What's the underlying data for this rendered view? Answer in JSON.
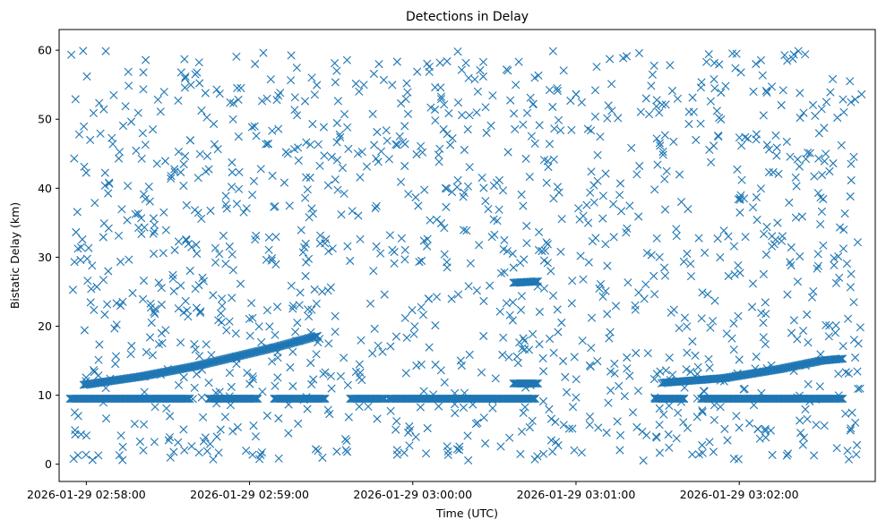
{
  "chart_data": {
    "type": "scatter",
    "title": "Detections in Delay",
    "xlabel": "Time (UTC)",
    "ylabel": "Bistatic Delay (km)",
    "marker": "x",
    "color": "#1f77b4",
    "grid": false,
    "xlim": [
      "2026-01-29 02:57:50",
      "2026-01-29 03:02:50"
    ],
    "ylim": [
      -2.5,
      63
    ],
    "x_ticks": [
      "2026-01-29 02:58:00",
      "2026-01-29 02:59:00",
      "2026-01-29 03:00:00",
      "2026-01-29 03:01:00",
      "2026-01-29 03:02:00"
    ],
    "y_ticks": [
      0,
      10,
      20,
      30,
      40,
      50,
      60
    ],
    "data_time_range": [
      "2026-01-29 02:57:54",
      "2026-01-29 03:02:45"
    ],
    "series": [
      {
        "kind": "persistent_line",
        "delay_km": 9.5,
        "segments": [
          [
            "02:57:54",
            "02:58:38"
          ],
          [
            "02:58:45",
            "02:59:03"
          ],
          [
            "02:59:09",
            "02:59:28"
          ],
          [
            "02:59:37",
            "02:59:50"
          ],
          [
            "02:59:51",
            "03:00:45"
          ],
          [
            "03:01:29",
            "03:01:40"
          ],
          [
            "03:01:46",
            "03:02:38"
          ]
        ]
      },
      {
        "kind": "target_track",
        "points": [
          [
            "02:57:59",
            11.5
          ],
          [
            "02:58:20",
            12.7
          ],
          [
            "02:58:40",
            14.2
          ],
          [
            "02:58:55",
            15.6
          ],
          [
            "02:59:10",
            17.0
          ],
          [
            "02:59:25",
            18.6
          ]
        ]
      },
      {
        "kind": "target_track",
        "points": [
          [
            "03:00:37",
            26.3
          ],
          [
            "03:00:46",
            26.5
          ]
        ]
      },
      {
        "kind": "target_track",
        "points": [
          [
            "03:00:37",
            11.7
          ],
          [
            "03:00:46",
            11.7
          ]
        ]
      },
      {
        "kind": "target_track",
        "points": [
          [
            "03:01:32",
            11.8
          ],
          [
            "03:01:55",
            12.5
          ],
          [
            "03:02:15",
            13.8
          ],
          [
            "03:02:30",
            15.0
          ],
          [
            "03:02:38",
            15.3
          ]
        ]
      },
      {
        "kind": "clutter",
        "count": 1300,
        "delay_range_km": [
          0.5,
          60
        ],
        "time_range": [
          "02:57:54",
          "03:02:45"
        ]
      }
    ]
  }
}
